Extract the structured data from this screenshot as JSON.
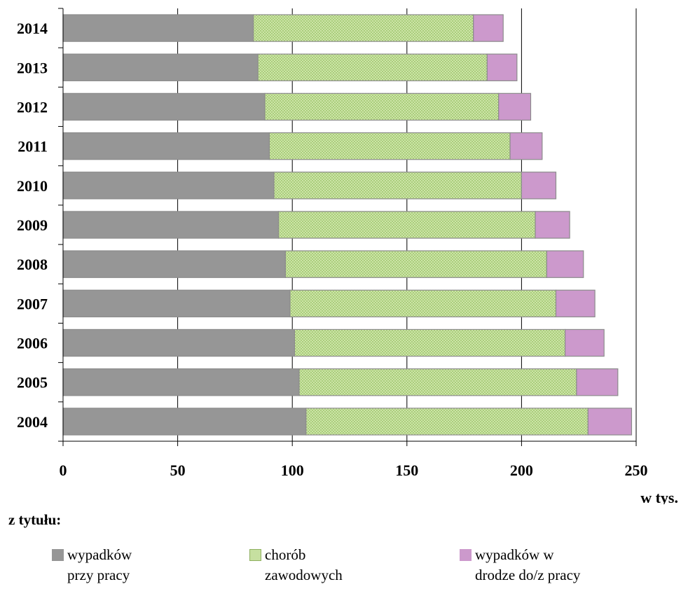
{
  "chart_data": {
    "type": "bar",
    "orientation": "horizontal",
    "stacked": true,
    "categories": [
      "2014",
      "2013",
      "2012",
      "2011",
      "2010",
      "2009",
      "2008",
      "2007",
      "2006",
      "2005",
      "2004"
    ],
    "series": [
      {
        "name": "wypadków przy pracy",
        "color": "#969696",
        "pattern": "solid",
        "values": [
          83,
          85,
          88,
          90,
          92,
          94,
          97,
          99,
          101,
          103,
          106
        ]
      },
      {
        "name": "chorób zawodowych",
        "color": "#c6e0a0",
        "pattern": "crosshatch",
        "values": [
          96,
          100,
          102,
          105,
          108,
          112,
          114,
          116,
          118,
          121,
          123
        ]
      },
      {
        "name": "wypadków w drodze do/z pracy",
        "color": "#cc99cc",
        "pattern": "solid",
        "values": [
          13,
          13,
          14,
          14,
          15,
          15,
          16,
          17,
          17,
          18,
          19
        ]
      }
    ],
    "xlim": [
      0,
      250
    ],
    "xticks": [
      "0",
      "50",
      "100",
      "150",
      "200",
      "250"
    ],
    "xunit": "w tys.",
    "grid": "vertical"
  },
  "legend": {
    "title": "z tytułu:",
    "items": [
      {
        "line1": "wypadków",
        "line2": "przy pracy"
      },
      {
        "line1": "chorób",
        "line2": "zawodowych"
      },
      {
        "line1": "wypadków w",
        "line2": "drodze do/z pracy"
      }
    ]
  }
}
